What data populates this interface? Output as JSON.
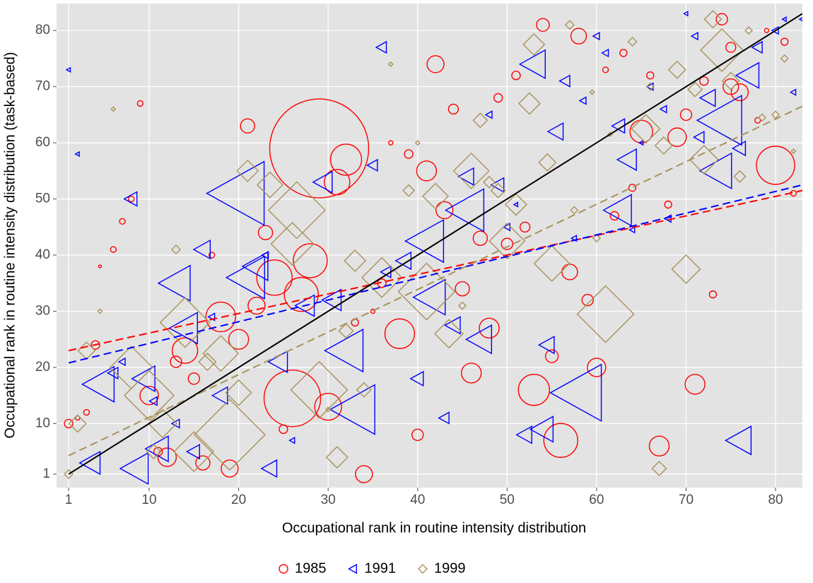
{
  "chart_data": {
    "type": "scatter",
    "x_label": "Occupational rank in routine intensity distribution",
    "y_label": "Occupational rank in routine intensity distribution (task-based)",
    "xlim": [
      -0.35,
      83
    ],
    "ylim": [
      -1.4,
      84.8
    ],
    "xticks": [
      1,
      10,
      20,
      30,
      40,
      50,
      60,
      70,
      80
    ],
    "yticks": [
      1,
      10,
      20,
      30,
      40,
      50,
      60,
      70,
      80
    ],
    "grid": true,
    "legend": "bottom",
    "reference_line": {
      "color": "#000000",
      "x": [
        1,
        83
      ],
      "y": [
        1,
        83
      ]
    },
    "series": [
      {
        "name": "1985",
        "color": "#ff0000",
        "marker": "circle",
        "fit": {
          "x": [
            1,
            83
          ],
          "y": [
            23,
            51.5
          ]
        },
        "x": [
          1,
          2,
          3,
          4,
          4.5,
          6,
          7,
          8,
          9,
          10,
          11,
          12,
          13,
          14,
          15,
          16,
          17,
          18,
          19,
          20,
          21,
          22,
          23,
          24,
          26,
          25,
          27,
          28,
          29,
          30,
          31,
          32,
          33,
          34,
          35,
          36,
          37,
          38,
          39,
          40,
          41,
          42,
          43,
          44,
          45,
          46,
          47,
          48,
          49,
          50,
          52,
          51,
          53,
          54,
          55,
          56,
          57,
          58,
          59,
          60,
          61,
          62,
          63,
          64,
          65,
          66,
          67,
          68,
          69,
          70,
          71,
          72,
          73,
          74,
          75,
          75,
          76,
          78,
          79,
          80,
          81,
          82
        ],
        "y": [
          10,
          11,
          12,
          24,
          38,
          41,
          46,
          50,
          67,
          15,
          5,
          4,
          21,
          23,
          18,
          3,
          40,
          29,
          2,
          25,
          63,
          31,
          44,
          36,
          14.5,
          9,
          33,
          39,
          59,
          13,
          53,
          57,
          28,
          1,
          30,
          35,
          60,
          26,
          58,
          8,
          55,
          74,
          48,
          66,
          34,
          19,
          43,
          27,
          68,
          42,
          45,
          72,
          16,
          81,
          22,
          7,
          37,
          79,
          32,
          20,
          73,
          47,
          76,
          52,
          62,
          72,
          6,
          49,
          61,
          65,
          17,
          71,
          33,
          82,
          77,
          70,
          69,
          64,
          80,
          56,
          78,
          51
        ],
        "sizes": [
          6,
          3,
          4,
          6,
          2,
          4,
          4,
          4,
          4,
          13,
          6,
          13,
          8,
          18,
          8,
          10,
          4,
          21,
          12,
          14,
          10,
          12,
          10,
          25,
          40,
          6,
          24,
          24,
          70,
          19,
          18,
          22,
          5,
          12,
          3,
          6,
          3,
          21,
          6,
          8,
          14,
          12,
          12,
          7,
          10,
          14,
          10,
          14,
          6,
          8,
          7,
          6,
          22,
          9,
          9,
          24,
          11,
          11,
          8,
          13,
          4,
          6,
          5,
          5,
          16,
          5,
          14,
          5,
          13,
          8,
          14,
          6,
          5,
          8,
          7,
          11,
          12,
          4,
          3,
          27,
          5,
          4
        ]
      },
      {
        "name": "1991",
        "color": "#0000ff",
        "marker": "triangle",
        "fit": {
          "x": [
            1,
            83
          ],
          "y": [
            20.8,
            52.5
          ]
        },
        "x": [
          1,
          2,
          3.5,
          4.5,
          6,
          7,
          8,
          8.5,
          9.5,
          10.5,
          11,
          13,
          13,
          14,
          15,
          16,
          17,
          18,
          20,
          21,
          22,
          23,
          23.5,
          24.5,
          26,
          27.5,
          29.5,
          30.5,
          32,
          33,
          35,
          36,
          36.5,
          38.5,
          40,
          41,
          41.5,
          43,
          44,
          45.5,
          45.5,
          47,
          48,
          49,
          50,
          51,
          52,
          53,
          54,
          54.5,
          55.5,
          56.5,
          57.5,
          58,
          58.5,
          60,
          61,
          62.5,
          62.5,
          63.5,
          64,
          65,
          66,
          67.5,
          68,
          70,
          71,
          71.5,
          72.5,
          73.5,
          74,
          76,
          76,
          77,
          78,
          80,
          81,
          82,
          83
        ],
        "y": [
          73,
          58,
          3,
          17,
          19,
          21,
          50,
          2,
          18,
          14,
          5.5,
          35,
          10,
          27,
          5,
          41,
          29,
          15,
          51,
          36,
          38,
          40,
          2,
          21,
          7,
          31,
          53,
          32,
          23,
          12.5,
          56,
          77,
          37,
          39,
          18,
          42.5,
          32.5,
          11,
          27.5,
          54,
          48,
          25,
          65,
          52.5,
          45,
          49,
          8,
          74,
          9,
          24,
          62,
          71,
          43,
          15.5,
          67.5,
          79,
          76,
          63,
          48,
          57,
          44.5,
          60,
          70,
          66,
          46.5,
          83,
          79,
          61,
          68,
          55,
          64,
          59,
          7,
          72,
          77,
          80,
          82,
          69,
          82
        ],
        "sizes": [
          3,
          3,
          16,
          25,
          8,
          5,
          10,
          22,
          18,
          6,
          18,
          25,
          6,
          22,
          10,
          13,
          5,
          12,
          45,
          30,
          20,
          5,
          12,
          15,
          4,
          15,
          15,
          15,
          30,
          35,
          8,
          8,
          8,
          12,
          10,
          30,
          25,
          8,
          12,
          12,
          30,
          20,
          5,
          10,
          5,
          3,
          12,
          20,
          18,
          12,
          12,
          8,
          4,
          40,
          5,
          5,
          5,
          10,
          22,
          15,
          4,
          3,
          5,
          5,
          5,
          3,
          5,
          8,
          12,
          25,
          35,
          10,
          20,
          18,
          8,
          5,
          3,
          4,
          4
        ]
      },
      {
        "name": "1999",
        "color": "#a8925a",
        "marker": "diamond",
        "fit": {
          "x": [
            1,
            83
          ],
          "y": [
            4.3,
            66.5
          ]
        },
        "x": [
          1,
          2,
          3,
          4.5,
          6,
          8,
          10,
          10.5,
          11.5,
          13,
          14,
          15,
          16.5,
          18,
          19,
          20,
          21,
          23.5,
          26.5,
          26,
          29,
          30,
          31,
          32,
          33,
          34,
          36,
          37,
          39,
          40,
          41,
          42,
          43.5,
          45,
          46,
          47,
          48,
          49,
          50,
          51,
          53,
          54.5,
          52.5,
          55,
          57,
          57.5,
          59.5,
          60,
          61,
          61.5,
          64,
          65.5,
          66,
          67,
          67.5,
          69,
          70,
          71,
          72,
          73,
          74,
          75,
          76,
          77,
          78.5,
          80,
          81,
          82
        ],
        "y": [
          1,
          10,
          23,
          30,
          66,
          20,
          15,
          5,
          10,
          41,
          28,
          5,
          21,
          22.5,
          8,
          15.5,
          55,
          52.5,
          48,
          42,
          16,
          12.5,
          4,
          26.5,
          39,
          16,
          36,
          74,
          51.5,
          60,
          33.5,
          50.5,
          26,
          31,
          55,
          64,
          53,
          51.5,
          42.5,
          49,
          77.5,
          56.5,
          67,
          38.5,
          81,
          48,
          69,
          43,
          29.5,
          61.5,
          78,
          62.5,
          70,
          2,
          59.5,
          73,
          37.5,
          69.5,
          57,
          82,
          76.5,
          71,
          54,
          80,
          64.5,
          65,
          75,
          58.5
        ],
        "sizes": [
          6,
          12,
          12,
          3,
          3,
          30,
          35,
          10,
          20,
          6,
          35,
          28,
          12,
          25,
          50,
          18,
          15,
          18,
          40,
          30,
          40,
          3,
          15,
          10,
          15,
          10,
          28,
          3,
          8,
          3,
          40,
          18,
          20,
          5,
          25,
          10,
          8,
          10,
          25,
          15,
          15,
          12,
          15,
          25,
          6,
          5,
          3,
          5,
          40,
          3,
          6,
          20,
          5,
          10,
          12,
          12,
          20,
          10,
          20,
          12,
          30,
          12,
          8,
          5,
          5,
          5,
          5,
          3
        ]
      }
    ]
  }
}
